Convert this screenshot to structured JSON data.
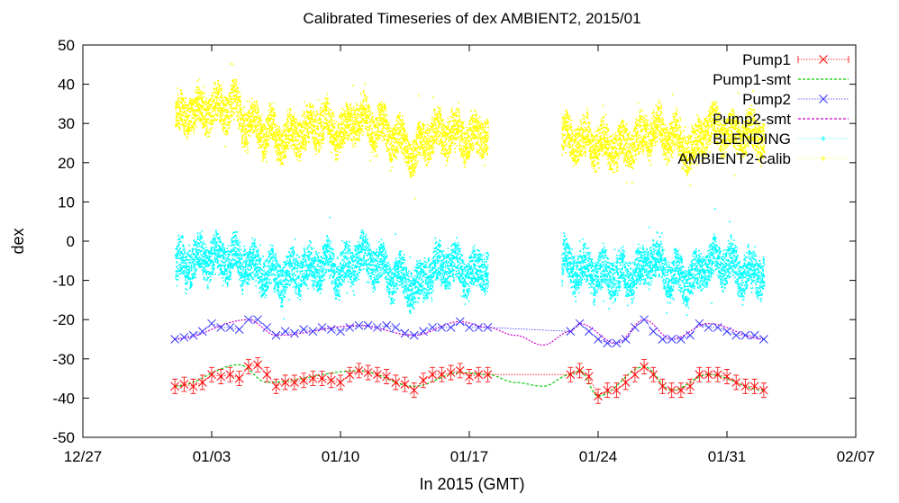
{
  "chart_data": {
    "type": "line",
    "title": "Calibrated Timeseries of dex AMBIENT2, 2015/01",
    "xlabel": "In 2015 (GMT)",
    "ylabel": "dex",
    "ylim": [
      -50,
      50
    ],
    "yticks": [
      -50,
      -40,
      -30,
      -20,
      -10,
      0,
      10,
      20,
      30,
      40,
      50
    ],
    "xlim": [
      "2014-12-27",
      "2015-02-07"
    ],
    "xticks": [
      {
        "date": "2014-12-27",
        "label": "12/27"
      },
      {
        "date": "2015-01-03",
        "label": "01/03"
      },
      {
        "date": "2015-01-10",
        "label": "01/10"
      },
      {
        "date": "2015-01-17",
        "label": "01/17"
      },
      {
        "date": "2015-01-24",
        "label": "01/24"
      },
      {
        "date": "2015-01-31",
        "label": "01/31"
      },
      {
        "date": "2015-02-07",
        "label": "02/07"
      }
    ],
    "grid": false,
    "legend_position": "top-right",
    "series": [
      {
        "name": "Pump1",
        "color": "#ff0000",
        "marker": "x",
        "errorbars": true,
        "x": [
          "2015-01-01",
          "2015-01-01.5",
          "2015-01-02",
          "2015-01-02.5",
          "2015-01-03",
          "2015-01-03.5",
          "2015-01-04",
          "2015-01-04.5",
          "2015-01-05",
          "2015-01-05.5",
          "2015-01-06",
          "2015-01-06.5",
          "2015-01-07",
          "2015-01-07.5",
          "2015-01-08",
          "2015-01-08.5",
          "2015-01-09",
          "2015-01-09.5",
          "2015-01-10",
          "2015-01-10.5",
          "2015-01-11",
          "2015-01-11.5",
          "2015-01-12",
          "2015-01-12.5",
          "2015-01-13",
          "2015-01-13.5",
          "2015-01-14",
          "2015-01-14.5",
          "2015-01-15",
          "2015-01-15.5",
          "2015-01-16",
          "2015-01-16.5",
          "2015-01-17",
          "2015-01-17.5",
          "2015-01-18",
          "2015-01-22.5",
          "2015-01-23",
          "2015-01-23.5",
          "2015-01-24",
          "2015-01-24.5",
          "2015-01-25",
          "2015-01-25.5",
          "2015-01-26",
          "2015-01-26.5",
          "2015-01-27",
          "2015-01-27.5",
          "2015-01-28",
          "2015-01-28.5",
          "2015-01-29",
          "2015-01-29.5",
          "2015-01-30",
          "2015-01-30.5",
          "2015-01-31",
          "2015-01-31.5",
          "2015-02-01",
          "2015-02-01.5",
          "2015-02-02"
        ],
        "values": [
          -37,
          -36.5,
          -37,
          -36,
          -34,
          -34.5,
          -34,
          -35,
          -32,
          -31.5,
          -34,
          -37,
          -36,
          -36,
          -35.5,
          -35,
          -35,
          -35.5,
          -36,
          -34,
          -33,
          -33.5,
          -34,
          -34.5,
          -36,
          -36.5,
          -38,
          -35.5,
          -34,
          -34,
          -33.5,
          -33,
          -34.5,
          -34,
          -34,
          -34,
          -33,
          -34.5,
          -39.5,
          -38,
          -38,
          -36,
          -34,
          -32,
          -34,
          -37,
          -38,
          -38,
          -37,
          -34,
          -34,
          -34,
          -34.5,
          -36,
          -37,
          -37,
          -38
        ]
      },
      {
        "name": "Pump1-smt",
        "color": "#00cc00",
        "marker": "none",
        "x": [
          "2015-01-01",
          "2015-01-04.5",
          "2015-01-06",
          "2015-01-11",
          "2015-01-14",
          "2015-01-16.5",
          "2015-01-18",
          "2015-01-19.5",
          "2015-01-21",
          "2015-01-22.5",
          "2015-01-23",
          "2015-01-24",
          "2015-01-26.5",
          "2015-01-28",
          "2015-01-30",
          "2015-02-02"
        ],
        "values": [
          -37,
          -31.5,
          -36,
          -33,
          -37,
          -33.5,
          -34,
          -36,
          -37,
          -34,
          -33,
          -39.5,
          -32,
          -38,
          -34,
          -38
        ]
      },
      {
        "name": "Pump2",
        "color": "#3333ff",
        "marker": "x",
        "x": [
          "2015-01-01",
          "2015-01-01.5",
          "2015-01-02",
          "2015-01-02.5",
          "2015-01-03",
          "2015-01-03.5",
          "2015-01-04",
          "2015-01-04.5",
          "2015-01-05",
          "2015-01-05.5",
          "2015-01-06",
          "2015-01-06.5",
          "2015-01-07",
          "2015-01-07.5",
          "2015-01-08",
          "2015-01-08.5",
          "2015-01-09",
          "2015-01-09.5",
          "2015-01-10",
          "2015-01-10.5",
          "2015-01-11",
          "2015-01-11.5",
          "2015-01-12",
          "2015-01-12.5",
          "2015-01-13",
          "2015-01-13.5",
          "2015-01-14",
          "2015-01-14.5",
          "2015-01-15",
          "2015-01-15.5",
          "2015-01-16",
          "2015-01-16.5",
          "2015-01-17",
          "2015-01-17.5",
          "2015-01-18",
          "2015-01-22.5",
          "2015-01-23",
          "2015-01-23.5",
          "2015-01-24",
          "2015-01-24.5",
          "2015-01-25",
          "2015-01-25.5",
          "2015-01-26",
          "2015-01-26.5",
          "2015-01-27",
          "2015-01-27.5",
          "2015-01-28",
          "2015-01-28.5",
          "2015-01-29",
          "2015-01-29.5",
          "2015-01-30",
          "2015-01-30.5",
          "2015-01-31",
          "2015-01-31.5",
          "2015-02-01",
          "2015-02-01.5",
          "2015-02-02"
        ],
        "values": [
          -25,
          -24.5,
          -24,
          -23,
          -21,
          -22,
          -22,
          -22.5,
          -20,
          -20,
          -22,
          -24,
          -23,
          -23.5,
          -22.5,
          -23,
          -22,
          -22.5,
          -23,
          -22,
          -21.5,
          -21.5,
          -22,
          -21.5,
          -22,
          -23.5,
          -24,
          -23,
          -22,
          -22,
          -22,
          -20.5,
          -22,
          -22,
          -22,
          -23,
          -21,
          -23,
          -25,
          -26,
          -26,
          -25,
          -22,
          -20,
          -23,
          -25,
          -25,
          -25,
          -24,
          -21,
          -22,
          -22,
          -23,
          -24,
          -24,
          -24,
          -25
        ]
      },
      {
        "name": "Pump2-smt",
        "color": "#cc00cc",
        "marker": "none",
        "x": [
          "2015-01-01",
          "2015-01-05",
          "2015-01-06.5",
          "2015-01-11",
          "2015-01-14",
          "2015-01-16.5",
          "2015-01-18",
          "2015-01-19.5",
          "2015-01-21",
          "2015-01-22.5",
          "2015-01-23",
          "2015-01-25",
          "2015-01-26.5",
          "2015-01-28",
          "2015-01-30",
          "2015-02-02"
        ],
        "values": [
          -25,
          -20,
          -24,
          -21.5,
          -24,
          -20.5,
          -22,
          -24,
          -26.5,
          -23,
          -21,
          -26,
          -20,
          -25,
          -21,
          -25
        ]
      },
      {
        "name": "BLENDING",
        "color": "#00ffff",
        "marker": "dot",
        "noise": true,
        "x": [
          "2015-01-01",
          "2015-01-02",
          "2015-01-03",
          "2015-01-04",
          "2015-01-05",
          "2015-01-06",
          "2015-01-07",
          "2015-01-08",
          "2015-01-09",
          "2015-01-10",
          "2015-01-11",
          "2015-01-12",
          "2015-01-13",
          "2015-01-14",
          "2015-01-15",
          "2015-01-16",
          "2015-01-17",
          "2015-01-18",
          "2015-01-22",
          "2015-01-23",
          "2015-01-24",
          "2015-01-25",
          "2015-01-26",
          "2015-01-27",
          "2015-01-28",
          "2015-01-29",
          "2015-01-30",
          "2015-01-31",
          "2015-02-01",
          "2015-02-02"
        ],
        "values": [
          -6,
          -5,
          -4,
          -4,
          -6,
          -8,
          -9,
          -7,
          -6,
          -8,
          -4,
          -6,
          -9,
          -12,
          -7,
          -6,
          -8,
          -6,
          -6,
          -7,
          -8,
          -9,
          -8,
          -5,
          -9,
          -10,
          -5,
          -6,
          -8,
          -8
        ]
      },
      {
        "name": "AMBIENT2-calib",
        "color": "#ffff00",
        "marker": "dot",
        "noise": true,
        "x": [
          "2015-01-01",
          "2015-01-02",
          "2015-01-03",
          "2015-01-04",
          "2015-01-05",
          "2015-01-06",
          "2015-01-07",
          "2015-01-08",
          "2015-01-09",
          "2015-01-10",
          "2015-01-11",
          "2015-01-12",
          "2015-01-13",
          "2015-01-14",
          "2015-01-15",
          "2015-01-16",
          "2015-01-17",
          "2015-01-18",
          "2015-01-22",
          "2015-01-23",
          "2015-01-24",
          "2015-01-25",
          "2015-01-26",
          "2015-01-27",
          "2015-01-28",
          "2015-01-29",
          "2015-01-30",
          "2015-01-31",
          "2015-02-01",
          "2015-02-02"
        ],
        "values": [
          31,
          33,
          34,
          34,
          30,
          28,
          26,
          28,
          30,
          28,
          31,
          29,
          26,
          23,
          27,
          28,
          26,
          28,
          27,
          26,
          25,
          24,
          25,
          29,
          26,
          23,
          29,
          28,
          27,
          27
        ]
      }
    ]
  }
}
